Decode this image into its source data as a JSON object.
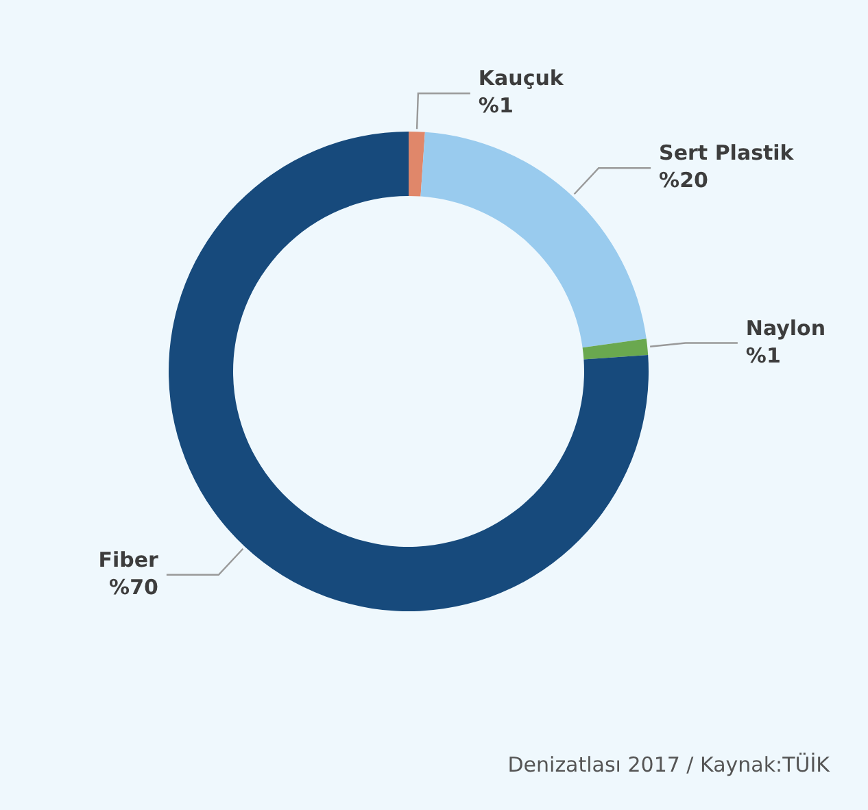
{
  "chart_data": {
    "type": "donut",
    "categories": [
      "Kauçuk",
      "Sert Plastik",
      "Naylon",
      "Fiber"
    ],
    "values": [
      1,
      20,
      1,
      70
    ],
    "value_labels": [
      "%1",
      "%20",
      "%1",
      "%70"
    ],
    "colors": [
      "#e0876a",
      "#99cbee",
      "#6aa84f",
      "#174a7c"
    ],
    "annotations": [
      "Denizatlası 2017 / Kaynak:TÜİK"
    ]
  }
}
